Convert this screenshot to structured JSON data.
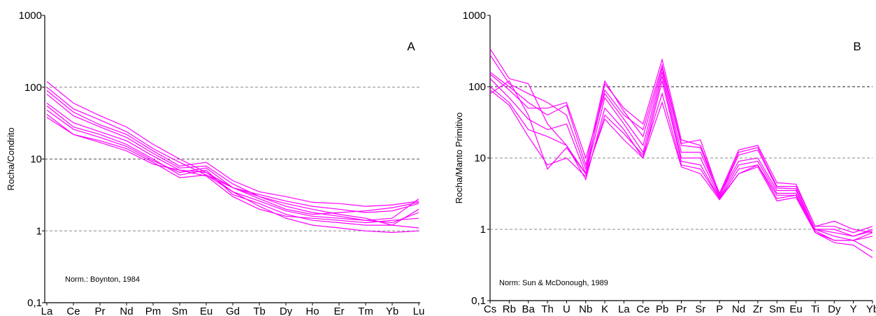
{
  "chart_data": [
    {
      "type": "line",
      "panel_label": "A",
      "ylabel": "Rocha/Condrito",
      "yscale": "log",
      "ylim": [
        0.1,
        1000
      ],
      "yticks": [
        "1000",
        "100",
        "10",
        "1",
        "0,1"
      ],
      "reference_lines": [
        1,
        10,
        100
      ],
      "annotation": "Norm.: Boynton, 1984",
      "categories": [
        "La",
        "Ce",
        "Pr",
        "Nd",
        "Pm",
        "Sm",
        "Eu",
        "Gd",
        "Tb",
        "Dy",
        "Ho",
        "Er",
        "Tm",
        "Yb",
        "Lu"
      ],
      "color": "#ff00ff",
      "series": [
        {
          "values": [
            120,
            60,
            40,
            28,
            16,
            10,
            6.5,
            4,
            3,
            2.4,
            2,
            1.7,
            1.5,
            1.2,
            1.1
          ]
        },
        {
          "values": [
            100,
            50,
            35,
            24,
            14,
            9,
            6,
            4,
            3.2,
            2.6,
            2.2,
            2,
            1.8,
            1.9,
            2.4
          ]
        },
        {
          "values": [
            90,
            45,
            30,
            22,
            13,
            8,
            9,
            5,
            3.5,
            3,
            2.5,
            2.4,
            2.2,
            2.3,
            2.6
          ]
        },
        {
          "values": [
            80,
            40,
            28,
            20,
            12,
            7.5,
            8,
            4.5,
            3,
            2.2,
            1.8,
            1.6,
            1.4,
            1.3,
            1.8
          ]
        },
        {
          "values": [
            60,
            32,
            24,
            18,
            11,
            7,
            6.5,
            3.5,
            2.6,
            1.9,
            1.6,
            1.5,
            1.4,
            1.5,
            2.8
          ]
        },
        {
          "values": [
            55,
            28,
            22,
            16,
            10,
            6,
            7,
            3.2,
            2.4,
            1.7,
            1.4,
            1.3,
            1.2,
            1.2,
            2
          ]
        },
        {
          "values": [
            48,
            26,
            20,
            15,
            9.5,
            6.5,
            7.5,
            4,
            2.8,
            2,
            1.7,
            1.8,
            1.9,
            2.1,
            2.5
          ]
        },
        {
          "values": [
            42,
            22,
            18,
            14,
            9,
            5.5,
            6,
            3.5,
            2.2,
            1.5,
            1.2,
            1.1,
            1,
            0.95,
            1
          ]
        },
        {
          "values": [
            38,
            22,
            17,
            13,
            8.5,
            7,
            5.8,
            3,
            2,
            1.6,
            1.5,
            1.4,
            1.3,
            1.4,
            1.5
          ]
        }
      ]
    },
    {
      "type": "line",
      "panel_label": "B",
      "ylabel": "Rocha/Manto Primitivo",
      "yscale": "log",
      "ylim": [
        0.1,
        1000
      ],
      "yticks": [
        "1000",
        "100",
        "10",
        "1",
        "0,1"
      ],
      "reference_lines": [
        1,
        10,
        100
      ],
      "annotation": "Norm: Sun & McDonough, 1989",
      "categories": [
        "Cs",
        "Rb",
        "Ba",
        "Th",
        "U",
        "Nb",
        "K",
        "La",
        "Ce",
        "Pb",
        "Pr",
        "Sr",
        "P",
        "Nd",
        "Zr",
        "Sm",
        "Eu",
        "Ti",
        "Dy",
        "Y",
        "Yb"
      ],
      "color": "#ff00ff",
      "series": [
        {
          "values": [
            340,
            130,
            110,
            30,
            15,
            6,
            110,
            50,
            30,
            240,
            18,
            15,
            3.2,
            13,
            15,
            4.5,
            4.3,
            1.1,
            1.3,
            1.0,
            0.9
          ]
        },
        {
          "values": [
            280,
            110,
            80,
            60,
            40,
            7,
            90,
            40,
            25,
            200,
            16,
            18,
            3,
            12,
            14,
            4,
            4,
            1.1,
            1.1,
            0.9,
            1.1
          ]
        },
        {
          "values": [
            160,
            100,
            60,
            40,
            55,
            8,
            120,
            45,
            20,
            180,
            15,
            14,
            2.9,
            11,
            13,
            3.8,
            3.7,
            1,
            1.0,
            0.8,
            1.0
          ]
        },
        {
          "values": [
            150,
            90,
            50,
            50,
            60,
            10,
            80,
            35,
            15,
            160,
            12,
            12,
            3,
            9,
            10,
            3.5,
            3.5,
            1,
            0.9,
            0.8,
            0.95
          ]
        },
        {
          "values": [
            130,
            70,
            35,
            25,
            30,
            6,
            70,
            30,
            12,
            140,
            10,
            10,
            2.8,
            8,
            9,
            3.2,
            3.2,
            1,
            0.8,
            0.7,
            0.9
          ]
        },
        {
          "values": [
            100,
            60,
            25,
            20,
            15,
            5,
            50,
            25,
            10,
            120,
            9,
            8,
            2.7,
            7,
            8,
            3,
            3,
            0.95,
            0.7,
            0.7,
            0.8
          ]
        },
        {
          "values": [
            90,
            55,
            20,
            8,
            10,
            5.5,
            40,
            22,
            11,
            80,
            8,
            7,
            2.7,
            6,
            8,
            2.7,
            3,
            0.9,
            0.7,
            0.7,
            0.5
          ]
        },
        {
          "values": [
            80,
            120,
            40,
            7,
            14,
            6,
            35,
            18,
            10,
            60,
            7.5,
            6,
            2.6,
            6,
            7.5,
            2.5,
            2.8,
            0.9,
            0.65,
            0.6,
            0.4
          ]
        }
      ]
    }
  ]
}
